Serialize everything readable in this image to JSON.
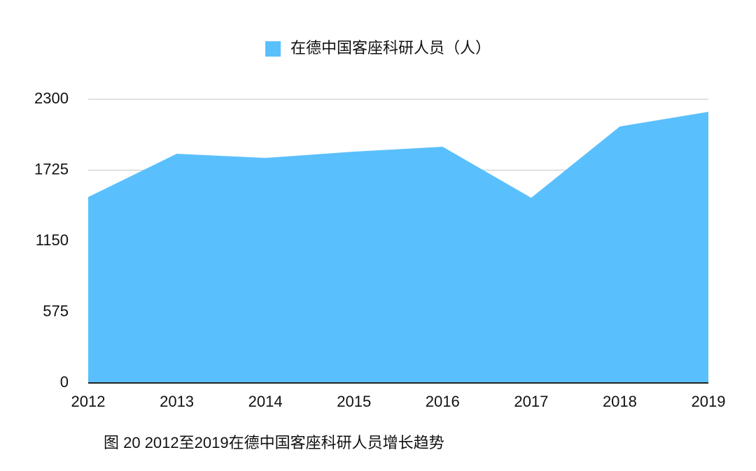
{
  "chart_data": {
    "type": "area",
    "categories": [
      "2012",
      "2013",
      "2014",
      "2015",
      "2016",
      "2017",
      "2018",
      "2019"
    ],
    "series": [
      {
        "name": "在德中国客座科研人员（人）",
        "color": "#5ac0fd",
        "values": [
          1507,
          1858,
          1824,
          1875,
          1915,
          1501,
          2079,
          2198
        ]
      }
    ],
    "ylim": [
      0,
      2300
    ],
    "yticks": [
      0,
      575,
      1150,
      1725,
      2300
    ],
    "grid": true,
    "legend": "top",
    "caption": "图 20 2012至2019在德中国客座科研人员增长趋势"
  }
}
